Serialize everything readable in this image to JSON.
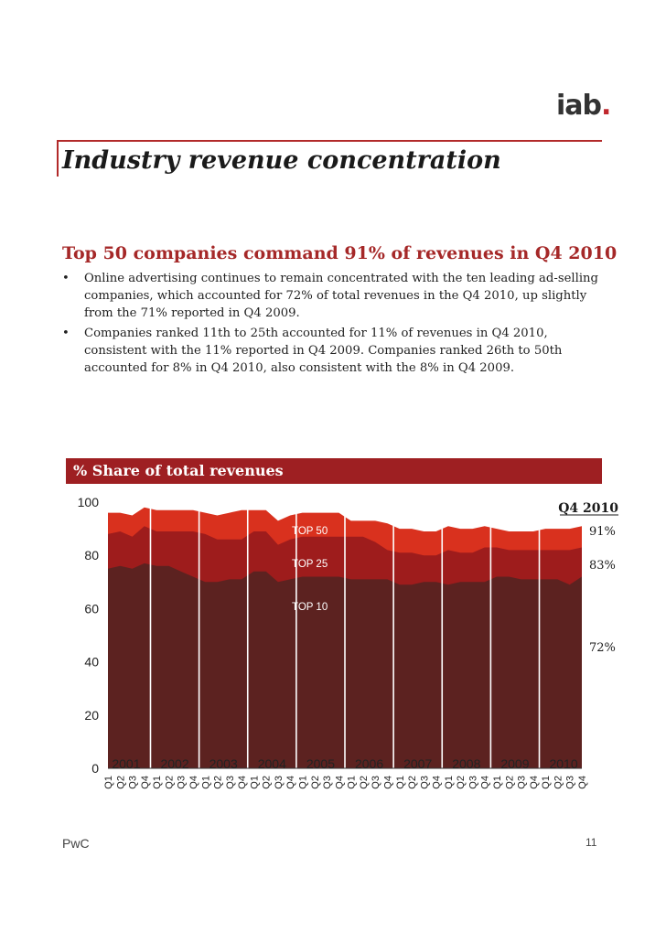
{
  "logo": {
    "text": "iab",
    "dot": "."
  },
  "title": "Industry revenue concentration",
  "subtitle": "Top 50 companies command 91% of revenues in Q4 2010",
  "bullets": [
    "Online advertising continues to remain concentrated with the ten leading ad-selling companies, which accounted for 72% of total revenues in the Q4 2010, up slightly from the 71% reported in Q4 2009.",
    "Companies ranked 11th to 25th accounted for 11% of revenues in Q4 2010,  consistent with the 11% reported in Q4 2009.  Companies ranked 26th to 50th accounted for 8% in Q4 2010, also consistent with the 8% in Q4 2009."
  ],
  "chart_header": "% Share of total revenues",
  "footer": {
    "left": "PwC",
    "page": "11"
  },
  "chart_data": {
    "type": "area",
    "title": "% Share of total revenues",
    "ylim": [
      0,
      100
    ],
    "yticks": [
      "0",
      "20",
      "40",
      "60",
      "80",
      "100"
    ],
    "years": [
      "2001",
      "2002",
      "2003",
      "2004",
      "2005",
      "2006",
      "2007",
      "2008",
      "2009",
      "2010"
    ],
    "quarters": [
      "Q1",
      "Q2",
      "Q3",
      "Q4"
    ],
    "colors": {
      "TOP 10": "#5c2220",
      "TOP 25": "#9e1c1c",
      "TOP 50": "#d9311e"
    },
    "series": [
      {
        "name": "TOP 10",
        "values": [
          75,
          76,
          75,
          77,
          76,
          76,
          74,
          72,
          70,
          70,
          71,
          71,
          74,
          74,
          70,
          71,
          72,
          72,
          72,
          72,
          71,
          71,
          71,
          71,
          69,
          69,
          70,
          70,
          69,
          70,
          70,
          70,
          72,
          72,
          71,
          71,
          71,
          71,
          69,
          72
        ]
      },
      {
        "name": "TOP 25",
        "values": [
          88,
          89,
          87,
          91,
          89,
          89,
          89,
          89,
          88,
          86,
          86,
          86,
          89,
          89,
          84,
          86,
          87,
          87,
          87,
          87,
          87,
          87,
          85,
          82,
          81,
          81,
          80,
          80,
          82,
          81,
          81,
          83,
          83,
          82,
          82,
          82,
          82,
          82,
          82,
          83
        ]
      },
      {
        "name": "TOP 50",
        "values": [
          96,
          96,
          95,
          98,
          97,
          97,
          97,
          97,
          96,
          95,
          96,
          97,
          97,
          97,
          93,
          95,
          96,
          96,
          96,
          96,
          93,
          93,
          93,
          92,
          90,
          90,
          89,
          89,
          91,
          90,
          90,
          91,
          90,
          89,
          89,
          89,
          90,
          90,
          90,
          91
        ]
      }
    ],
    "series_labels": [
      "TOP 50",
      "TOP 25",
      "TOP 10"
    ],
    "annotation": {
      "title": "Q4 2010",
      "values": [
        "91%",
        "83%",
        "72%"
      ]
    }
  }
}
